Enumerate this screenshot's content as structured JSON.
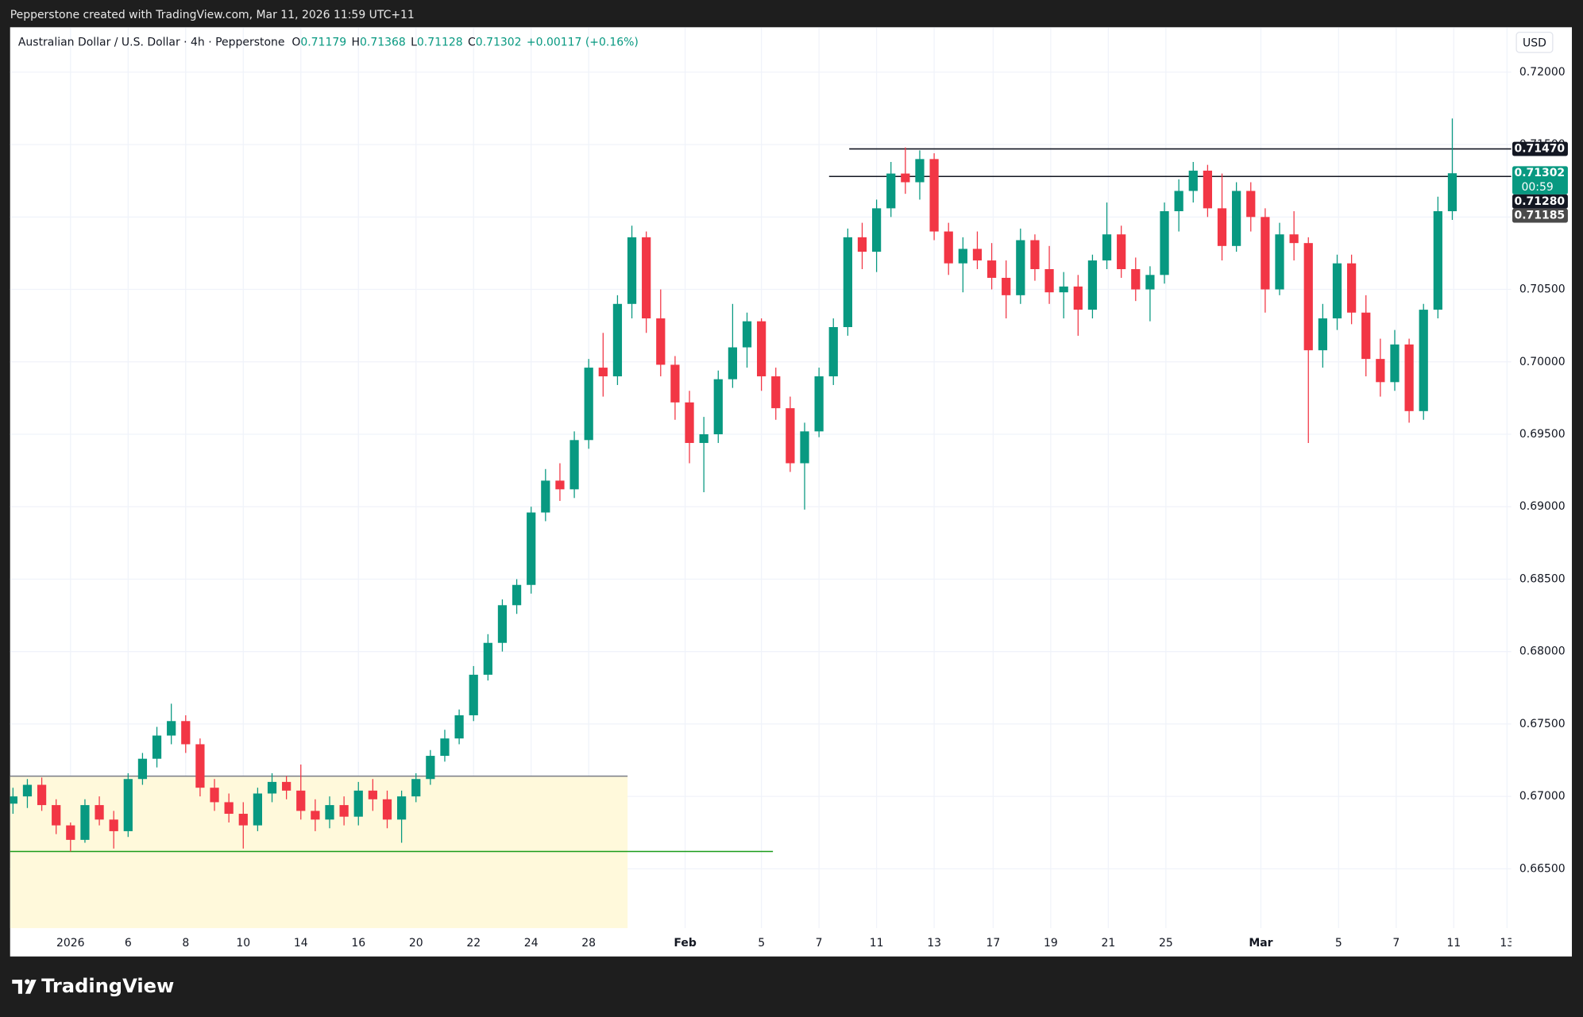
{
  "header": {
    "text": "Pepperstone created with TradingView.com, Mar 11, 2026 11:59 UTC+11"
  },
  "chart_data": {
    "type": "candlestick",
    "title": "Australian Dollar / U.S. Dollar · 4h · Pepperstone",
    "ohlc_legend": [
      {
        "label": "O",
        "value": 0.71179
      },
      {
        "label": "H",
        "value": 0.71368
      },
      {
        "label": "L",
        "value": 0.71128
      },
      {
        "label": "C",
        "value": 0.71302
      }
    ],
    "change": "+0.00117 (+0.16%)",
    "currency": "USD",
    "up_color": "#089981",
    "down_color": "#f23645",
    "xlim": [
      -0.2,
      104.1
    ],
    "ylim": [
      0.6609,
      0.7231
    ],
    "yticks": [
      {
        "value": 0.665,
        "label": "0.66500"
      },
      {
        "value": 0.67,
        "label": "0.67000"
      },
      {
        "value": 0.675,
        "label": "0.67500"
      },
      {
        "value": 0.68,
        "label": "0.68000"
      },
      {
        "value": 0.685,
        "label": "0.68500"
      },
      {
        "value": 0.69,
        "label": "0.69000"
      },
      {
        "value": 0.695,
        "label": "0.69500"
      },
      {
        "value": 0.7,
        "label": "0.70000"
      },
      {
        "value": 0.705,
        "label": "0.70500"
      },
      {
        "value": 0.71,
        "label": "0.71000"
      },
      {
        "value": 0.715,
        "label": "0.71500"
      },
      {
        "value": 0.72,
        "label": "0.72000"
      }
    ],
    "xticks": [
      {
        "value": 4,
        "label": "2026"
      },
      {
        "value": 8,
        "label": "6"
      },
      {
        "value": 12,
        "label": "8"
      },
      {
        "value": 16,
        "label": "10"
      },
      {
        "value": 20,
        "label": "14"
      },
      {
        "value": 24,
        "label": "16"
      },
      {
        "value": 28,
        "label": "20"
      },
      {
        "value": 32,
        "label": "22"
      },
      {
        "value": 36,
        "label": "24"
      },
      {
        "value": 40,
        "label": "28"
      },
      {
        "value": 46.7,
        "label": "Feb"
      },
      {
        "value": 52,
        "label": "5"
      },
      {
        "value": 56,
        "label": "7"
      },
      {
        "value": 60,
        "label": "11"
      },
      {
        "value": 64,
        "label": "13"
      },
      {
        "value": 68.1,
        "label": "17"
      },
      {
        "value": 72.1,
        "label": "19"
      },
      {
        "value": 76.1,
        "label": "21"
      },
      {
        "value": 80.1,
        "label": "25"
      },
      {
        "value": 86.7,
        "label": "Mar"
      },
      {
        "value": 92.1,
        "label": "5"
      },
      {
        "value": 96.1,
        "label": "7"
      },
      {
        "value": 100.1,
        "label": "11"
      },
      {
        "value": 103.8,
        "label": "13"
      }
    ],
    "box": {
      "top": 0.6714,
      "to": 42.7,
      "fill": "#fff9db",
      "line_color": "#787b86"
    },
    "levels": [
      {
        "price": 0.6662,
        "from": -0.2,
        "to": 52.8,
        "color": "#1a9c1a"
      },
      {
        "price": 0.7147,
        "from": 58.1,
        "to": 104.1,
        "color": "#131722"
      },
      {
        "price": 0.7128,
        "from": 56.7,
        "to": 104.1,
        "color": "#131722"
      }
    ],
    "price_tags": [
      {
        "value": 0.7147,
        "label": "0.71470",
        "color": "#131722"
      },
      {
        "value": 0.71302,
        "label": "0.71302",
        "sub": "00:59",
        "color": "#089981"
      },
      {
        "value": 0.7128,
        "label": "0.71280",
        "color": "#131722"
      },
      {
        "value": 0.71185,
        "label": "0.71185",
        "color": "#4a4a4a"
      }
    ],
    "candles": [
      [
        0.6695,
        0.6706,
        0.6688,
        0.67
      ],
      [
        0.67,
        0.6712,
        0.6692,
        0.6708
      ],
      [
        0.6708,
        0.6713,
        0.669,
        0.6694
      ],
      [
        0.6694,
        0.6698,
        0.6674,
        0.668
      ],
      [
        0.668,
        0.6682,
        0.6662,
        0.667
      ],
      [
        0.667,
        0.6698,
        0.6668,
        0.6694
      ],
      [
        0.6694,
        0.67,
        0.668,
        0.6684
      ],
      [
        0.6684,
        0.669,
        0.6664,
        0.6676
      ],
      [
        0.6676,
        0.6716,
        0.6672,
        0.6712
      ],
      [
        0.6712,
        0.673,
        0.6708,
        0.6726
      ],
      [
        0.6726,
        0.6748,
        0.672,
        0.6742
      ],
      [
        0.6742,
        0.6764,
        0.6736,
        0.6752
      ],
      [
        0.6752,
        0.6756,
        0.673,
        0.6736
      ],
      [
        0.6736,
        0.674,
        0.67,
        0.6706
      ],
      [
        0.6706,
        0.6712,
        0.669,
        0.6696
      ],
      [
        0.6696,
        0.6702,
        0.6682,
        0.6688
      ],
      [
        0.6688,
        0.6696,
        0.6664,
        0.668
      ],
      [
        0.668,
        0.6706,
        0.6676,
        0.6702
      ],
      [
        0.6702,
        0.6716,
        0.6696,
        0.671
      ],
      [
        0.671,
        0.6714,
        0.6698,
        0.6704
      ],
      [
        0.6704,
        0.6722,
        0.6684,
        0.669
      ],
      [
        0.669,
        0.6698,
        0.6676,
        0.6684
      ],
      [
        0.6684,
        0.67,
        0.6678,
        0.6694
      ],
      [
        0.6694,
        0.67,
        0.668,
        0.6686
      ],
      [
        0.6686,
        0.671,
        0.668,
        0.6704
      ],
      [
        0.6704,
        0.6712,
        0.669,
        0.6698
      ],
      [
        0.6698,
        0.6704,
        0.6678,
        0.6684
      ],
      [
        0.6684,
        0.6704,
        0.6668,
        0.67
      ],
      [
        0.67,
        0.6716,
        0.6696,
        0.6712
      ],
      [
        0.6712,
        0.6732,
        0.6708,
        0.6728
      ],
      [
        0.6728,
        0.6746,
        0.6724,
        0.674
      ],
      [
        0.674,
        0.676,
        0.6736,
        0.6756
      ],
      [
        0.6756,
        0.679,
        0.6752,
        0.6784
      ],
      [
        0.6784,
        0.6812,
        0.678,
        0.6806
      ],
      [
        0.6806,
        0.6836,
        0.68,
        0.6832
      ],
      [
        0.6832,
        0.685,
        0.6826,
        0.6846
      ],
      [
        0.6846,
        0.69,
        0.684,
        0.6896
      ],
      [
        0.6896,
        0.6926,
        0.689,
        0.6918
      ],
      [
        0.6918,
        0.693,
        0.6904,
        0.6912
      ],
      [
        0.6912,
        0.6952,
        0.6906,
        0.6946
      ],
      [
        0.6946,
        0.7002,
        0.694,
        0.6996
      ],
      [
        0.6996,
        0.702,
        0.6976,
        0.699
      ],
      [
        0.699,
        0.7046,
        0.6984,
        0.704
      ],
      [
        0.704,
        0.7094,
        0.703,
        0.7086
      ],
      [
        0.7086,
        0.709,
        0.702,
        0.703
      ],
      [
        0.703,
        0.705,
        0.699,
        0.6998
      ],
      [
        0.6998,
        0.7004,
        0.696,
        0.6972
      ],
      [
        0.6972,
        0.698,
        0.693,
        0.6944
      ],
      [
        0.6944,
        0.6962,
        0.691,
        0.695
      ],
      [
        0.695,
        0.6994,
        0.6944,
        0.6988
      ],
      [
        0.6988,
        0.704,
        0.6982,
        0.701
      ],
      [
        0.701,
        0.7034,
        0.6996,
        0.7028
      ],
      [
        0.7028,
        0.703,
        0.698,
        0.699
      ],
      [
        0.699,
        0.6996,
        0.696,
        0.6968
      ],
      [
        0.6968,
        0.6976,
        0.6924,
        0.693
      ],
      [
        0.693,
        0.6958,
        0.6898,
        0.6952
      ],
      [
        0.6952,
        0.6996,
        0.6948,
        0.699
      ],
      [
        0.699,
        0.703,
        0.6984,
        0.7024
      ],
      [
        0.7024,
        0.7092,
        0.7018,
        0.7086
      ],
      [
        0.7086,
        0.7096,
        0.7064,
        0.7076
      ],
      [
        0.7076,
        0.7112,
        0.7062,
        0.7106
      ],
      [
        0.7106,
        0.7138,
        0.71,
        0.713
      ],
      [
        0.713,
        0.7148,
        0.7116,
        0.7124
      ],
      [
        0.7124,
        0.7146,
        0.7112,
        0.714
      ],
      [
        0.714,
        0.7144,
        0.7084,
        0.709
      ],
      [
        0.709,
        0.7096,
        0.706,
        0.7068
      ],
      [
        0.7068,
        0.7086,
        0.7048,
        0.7078
      ],
      [
        0.7078,
        0.709,
        0.7064,
        0.707
      ],
      [
        0.707,
        0.7082,
        0.705,
        0.7058
      ],
      [
        0.7058,
        0.707,
        0.703,
        0.7046
      ],
      [
        0.7046,
        0.7092,
        0.704,
        0.7084
      ],
      [
        0.7084,
        0.7088,
        0.7056,
        0.7064
      ],
      [
        0.7064,
        0.708,
        0.704,
        0.7048
      ],
      [
        0.7048,
        0.7062,
        0.703,
        0.7052
      ],
      [
        0.7052,
        0.706,
        0.7018,
        0.7036
      ],
      [
        0.7036,
        0.7074,
        0.703,
        0.707
      ],
      [
        0.707,
        0.711,
        0.7064,
        0.7088
      ],
      [
        0.7088,
        0.7094,
        0.7058,
        0.7064
      ],
      [
        0.7064,
        0.7072,
        0.7042,
        0.705
      ],
      [
        0.705,
        0.7066,
        0.7028,
        0.706
      ],
      [
        0.706,
        0.711,
        0.7054,
        0.7104
      ],
      [
        0.7104,
        0.7126,
        0.709,
        0.7118
      ],
      [
        0.7118,
        0.7138,
        0.711,
        0.7132
      ],
      [
        0.7132,
        0.7136,
        0.71,
        0.7106
      ],
      [
        0.7106,
        0.713,
        0.707,
        0.708
      ],
      [
        0.708,
        0.7124,
        0.7076,
        0.7118
      ],
      [
        0.7118,
        0.7124,
        0.709,
        0.71
      ],
      [
        0.71,
        0.7106,
        0.7034,
        0.705
      ],
      [
        0.705,
        0.7096,
        0.7046,
        0.7088
      ],
      [
        0.7088,
        0.7104,
        0.707,
        0.7082
      ],
      [
        0.7082,
        0.7086,
        0.6944,
        0.7008
      ],
      [
        0.7008,
        0.704,
        0.6996,
        0.703
      ],
      [
        0.703,
        0.7074,
        0.7022,
        0.7068
      ],
      [
        0.7068,
        0.7074,
        0.7026,
        0.7034
      ],
      [
        0.7034,
        0.7046,
        0.699,
        0.7002
      ],
      [
        0.7002,
        0.7016,
        0.6976,
        0.6986
      ],
      [
        0.6986,
        0.7022,
        0.698,
        0.7012
      ],
      [
        0.7012,
        0.7016,
        0.6958,
        0.6966
      ],
      [
        0.6966,
        0.704,
        0.696,
        0.7036
      ],
      [
        0.7036,
        0.7114,
        0.703,
        0.7104
      ],
      [
        0.7104,
        0.7168,
        0.7098,
        0.71302
      ]
    ]
  },
  "footer": {
    "brand": "TradingView"
  }
}
